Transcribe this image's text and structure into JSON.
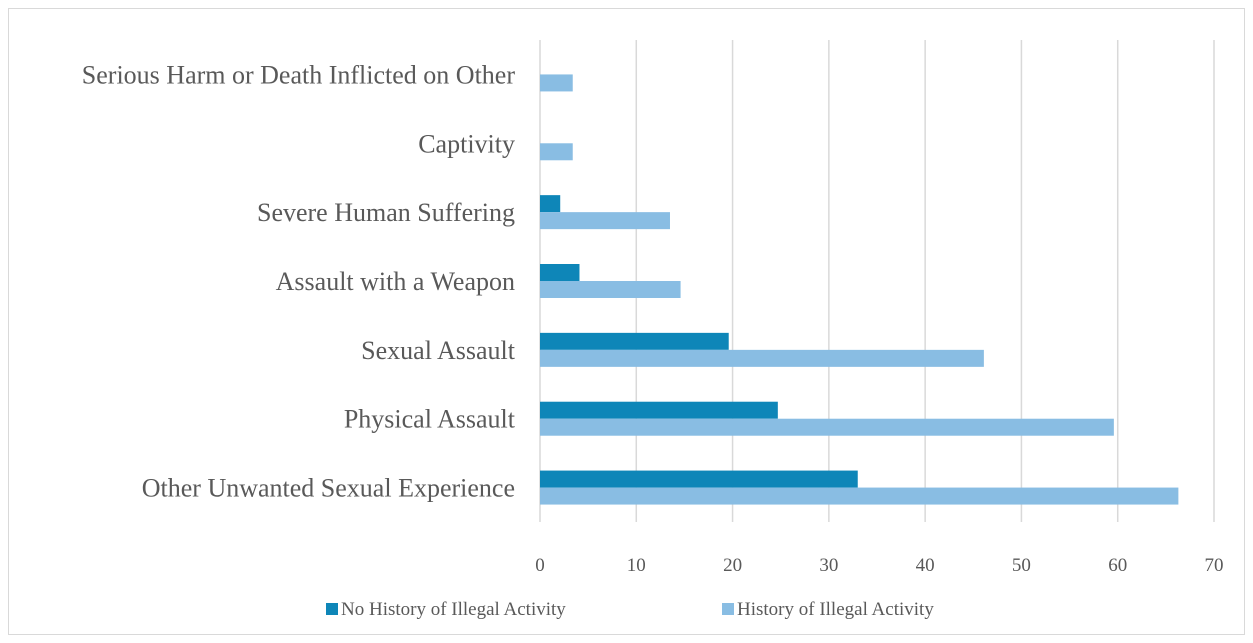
{
  "chart_data": {
    "type": "bar",
    "orientation": "horizontal",
    "categories": [
      "Other Unwanted Sexual Experience",
      "Physical Assault",
      "Sexual Assault",
      "Assault with a Weapon",
      "Severe Human Suffering",
      "Captivity",
      "Serious Harm or Death Inflicted on Other"
    ],
    "series": [
      {
        "name": "No History of Illegal Activity",
        "color": "#0e86b8",
        "values": [
          33.0,
          24.7,
          19.6,
          4.1,
          2.1,
          0,
          0
        ]
      },
      {
        "name": "History of Illegal Activity",
        "color": "#89bde3",
        "values": [
          66.3,
          59.6,
          46.1,
          14.6,
          13.5,
          3.4,
          3.4
        ]
      }
    ],
    "xlim": [
      0,
      70
    ],
    "xticks": [
      0,
      10,
      20,
      30,
      40,
      50,
      60,
      70
    ],
    "grid": true,
    "legend": "bottom"
  }
}
